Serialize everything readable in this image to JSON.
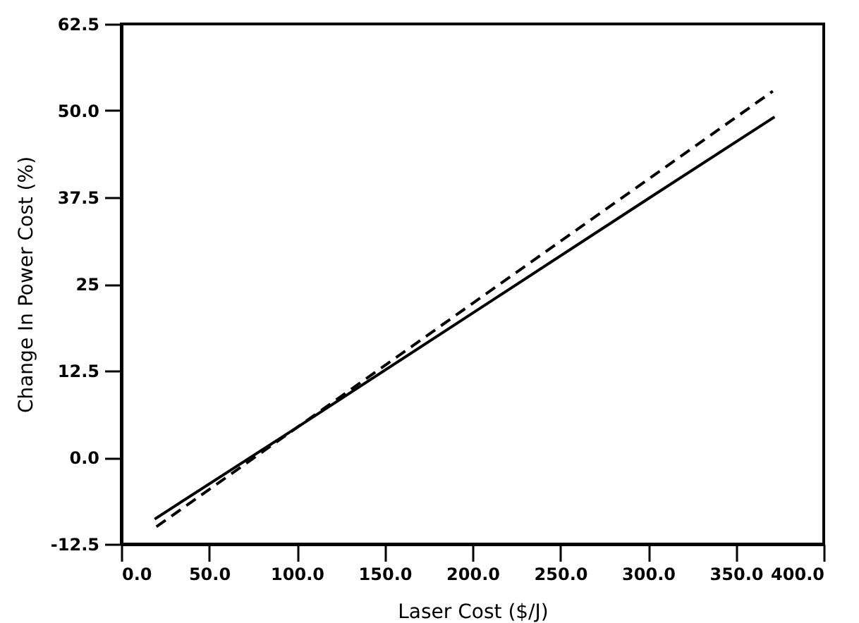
{
  "chart_data": {
    "type": "line",
    "xlabel": "Laser Cost ($/J)",
    "ylabel": "Change In Power Cost (%)",
    "xlim": [
      0,
      400
    ],
    "ylim": [
      -12.5,
      62.5
    ],
    "xticks": [
      {
        "value": 0,
        "label": "0.0"
      },
      {
        "value": 50,
        "label": "50.0"
      },
      {
        "value": 100,
        "label": "100.0"
      },
      {
        "value": 150,
        "label": "150.0"
      },
      {
        "value": 200,
        "label": "200.0"
      },
      {
        "value": 250,
        "label": "250.0"
      },
      {
        "value": 300,
        "label": "300.0"
      },
      {
        "value": 350,
        "label": "350.0"
      },
      {
        "value": 400,
        "label": "400.0"
      }
    ],
    "yticks": [
      -12.5,
      {
        "value": 0,
        "label": "0.0"
      },
      12.5,
      25,
      37.5,
      {
        "value": 50,
        "label": "50.0"
      },
      62.5
    ],
    "grid": false,
    "marker": "none",
    "series": [
      {
        "color": "#000000",
        "line_style": "solid",
        "x": [
          19,
          100,
          200,
          300,
          372
        ],
        "values": [
          -8.9,
          4.3,
          20.8,
          37.3,
          49.1
        ]
      },
      {
        "color": "#000000",
        "line_style": "dashed",
        "x": [
          20,
          100,
          200,
          300,
          371
        ],
        "values": [
          -10.0,
          4.3,
          22.2,
          40.1,
          52.8
        ]
      }
    ]
  }
}
